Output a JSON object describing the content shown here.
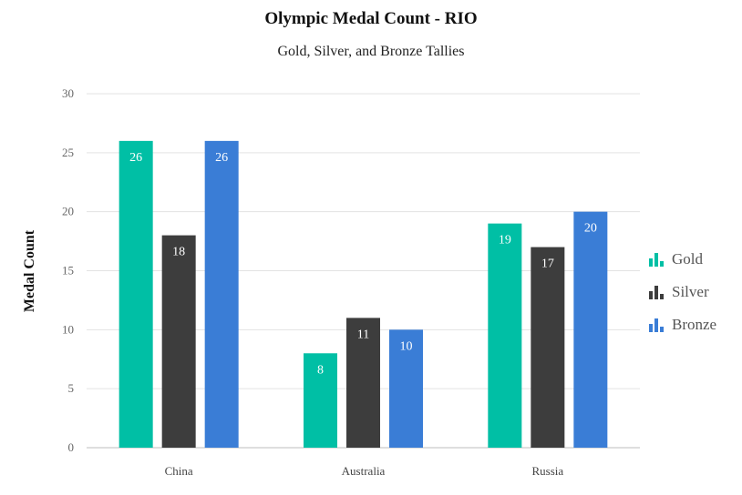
{
  "chart_data": {
    "type": "bar",
    "title": "Olympic Medal Count - RIO",
    "subtitle": "Gold, Silver, and Bronze Tallies",
    "xlabel": "",
    "ylabel": "Medal Count",
    "ylim": [
      0,
      30
    ],
    "yticks": [
      "0",
      "5",
      "10",
      "15",
      "20",
      "25",
      "30"
    ],
    "categories": [
      "China",
      "Australia",
      "Russia"
    ],
    "series": [
      {
        "name": "Gold",
        "color": "#00bfa5",
        "values": [
          26,
          8,
          19
        ]
      },
      {
        "name": "Silver",
        "color": "#3d3d3d",
        "values": [
          18,
          11,
          17
        ]
      },
      {
        "name": "Bronze",
        "color": "#3a7dd6",
        "values": [
          26,
          10,
          20
        ]
      }
    ],
    "grid": true,
    "legend_position": "right"
  }
}
